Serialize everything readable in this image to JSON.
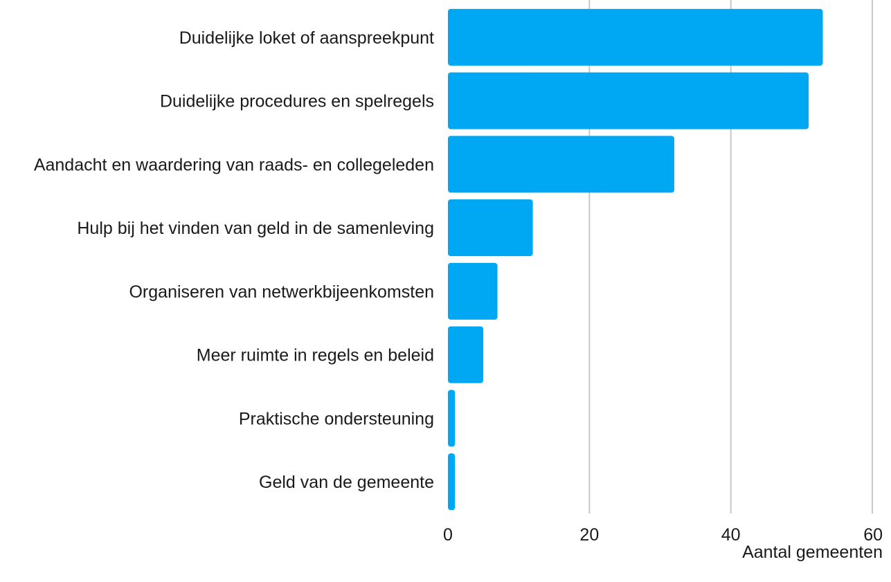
{
  "chart_data": {
    "type": "bar",
    "orientation": "horizontal",
    "categories": [
      "Duidelijke loket of aanspreekpunt",
      "Duidelijke procedures en spelregels",
      "Aandacht en waardering van raads- en collegeleden",
      "Hulp bij het vinden van geld in de samenleving",
      "Organiseren van netwerkbijeenkomsten",
      "Meer ruimte in regels en beleid",
      "Praktische ondersteuning",
      "Geld van de gemeente"
    ],
    "values": [
      53,
      51,
      32,
      12,
      7,
      5,
      1,
      1
    ],
    "title": "",
    "xlabel": "Aantal gemeenten",
    "ylabel": "",
    "xlim": [
      0,
      60
    ],
    "xticks": [
      0,
      20,
      40,
      60
    ],
    "xtick_labels": [
      "0",
      "20",
      "40",
      "60"
    ],
    "grid": true,
    "legend": "none",
    "bar_color": "#00A8F3",
    "grid_color": "#C8C8C8"
  }
}
